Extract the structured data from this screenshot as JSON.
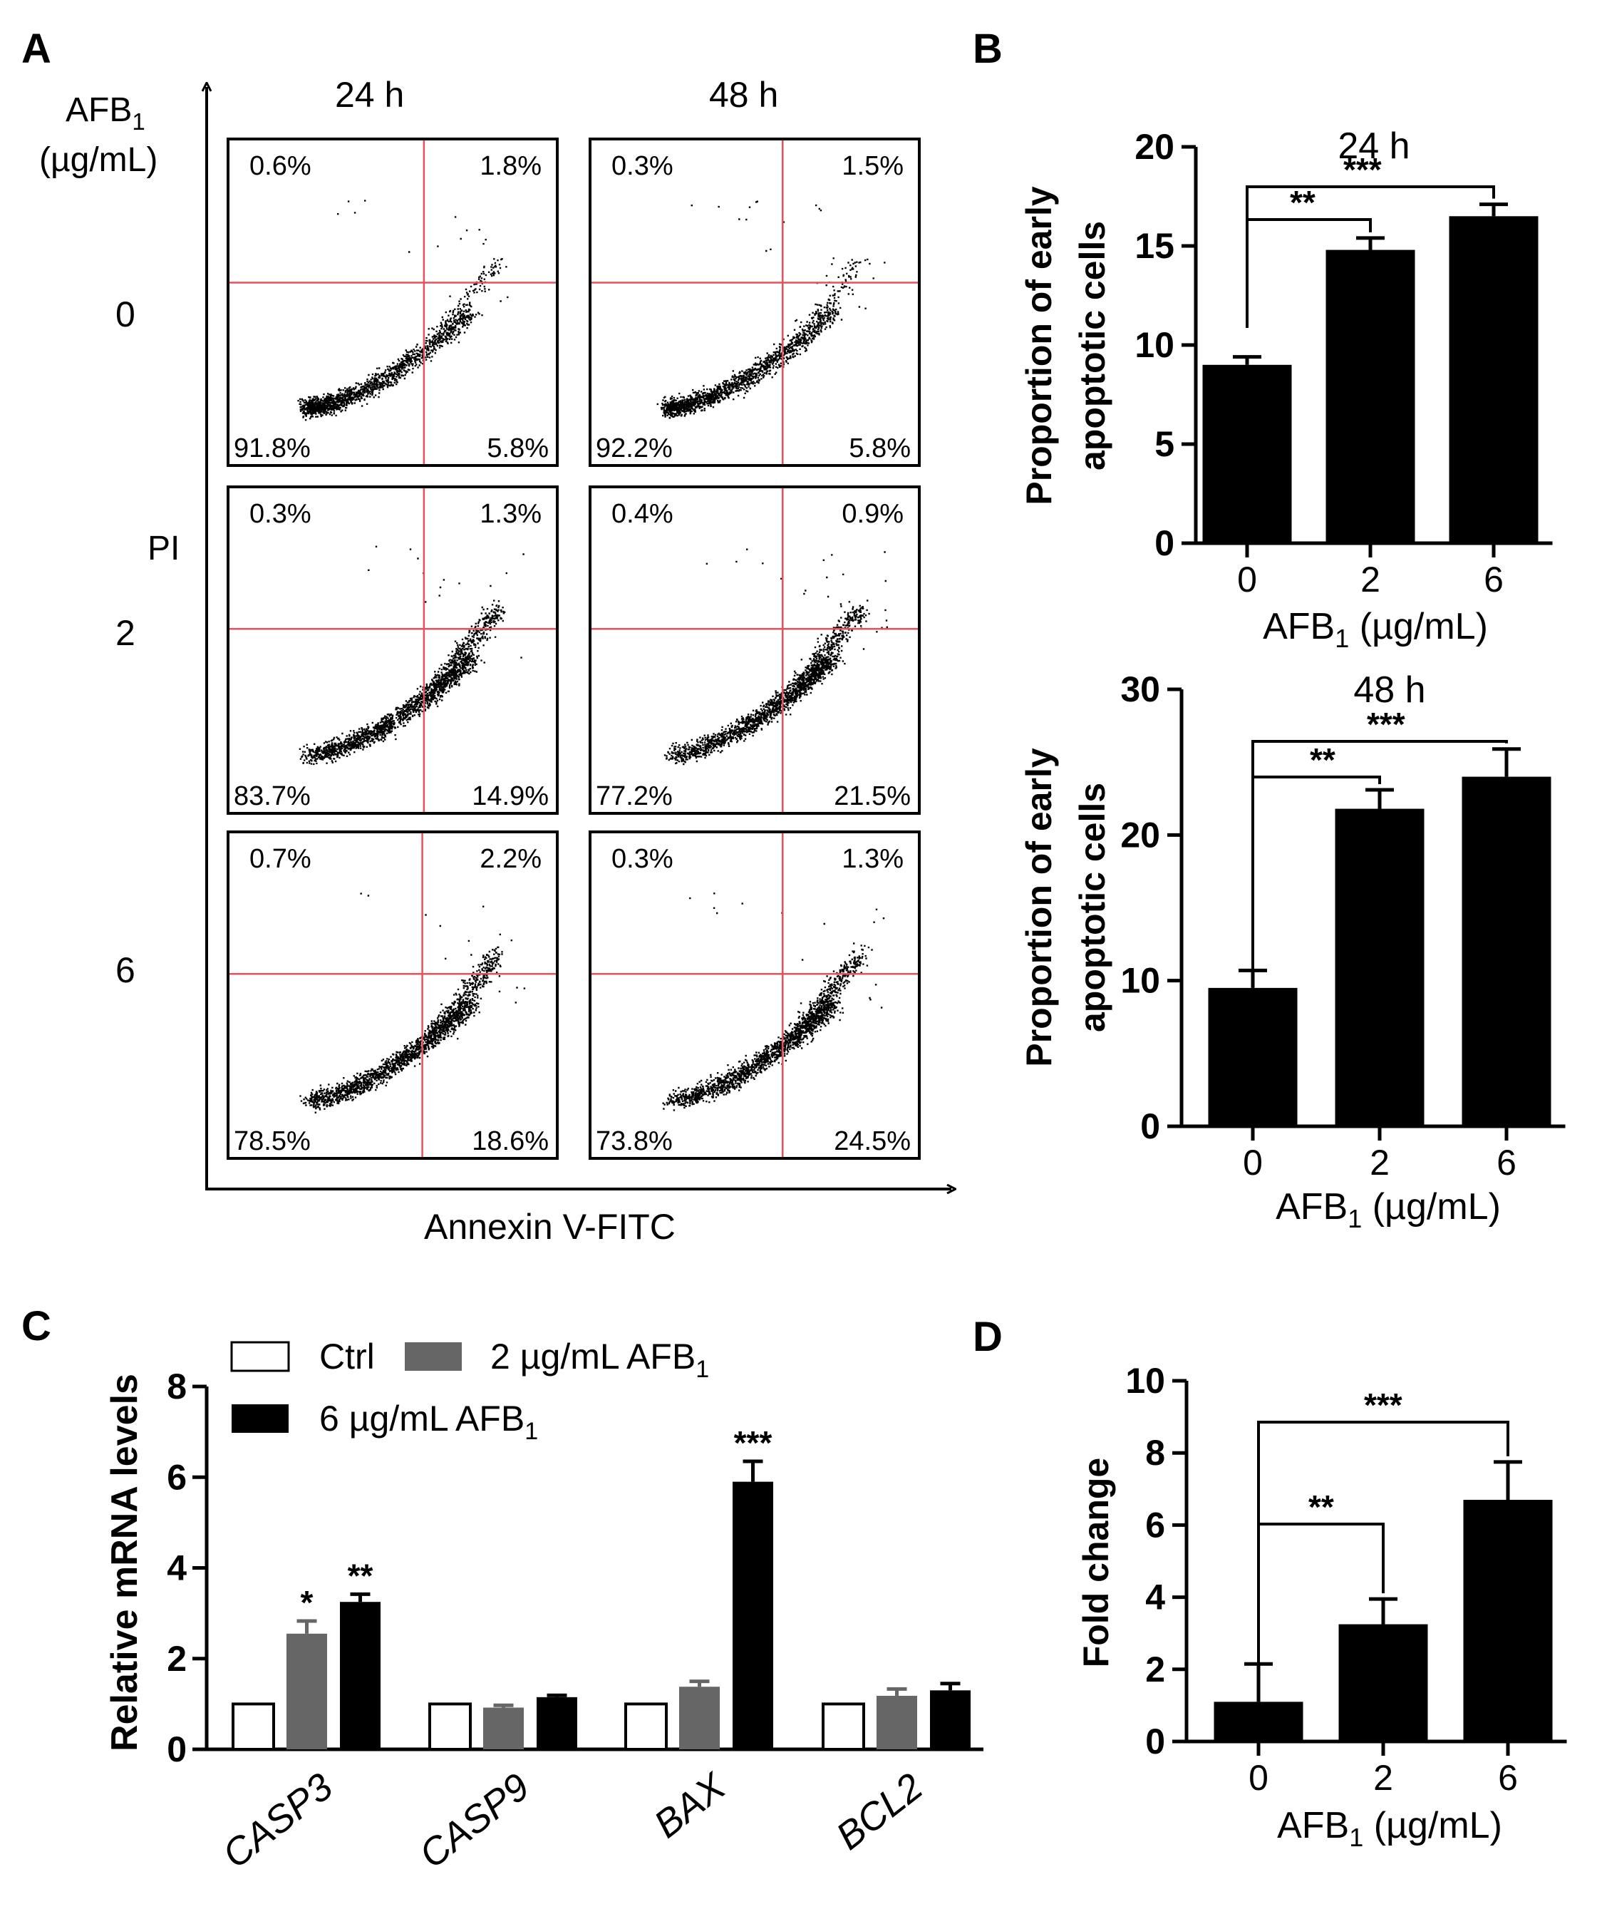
{
  "panel_letters": {
    "a": "A",
    "b": "B",
    "c": "C",
    "d": "D"
  },
  "flow": {
    "afb_label": "AFB",
    "afb_sub": "1",
    "unit_label": "(µg/mL)",
    "y_axis": "PI",
    "x_axis": "Annexin V-FITC",
    "col_times": [
      "24 h",
      "48 h"
    ],
    "row_doses": [
      "0",
      "2",
      "6"
    ],
    "colors": {
      "gate": "#e8505b",
      "dots": "#000000"
    },
    "plots": [
      {
        "tl": "0.6%",
        "tr": "1.8%",
        "bl": "91.8%",
        "br": "5.8%",
        "gx": 0.595,
        "gy": 0.44,
        "shape": "ctrl"
      },
      {
        "tl": "0.3%",
        "tr": "1.5%",
        "bl": "92.2%",
        "br": "5.8%",
        "gx": 0.585,
        "gy": 0.44,
        "shape": "ctrl"
      },
      {
        "tl": "0.3%",
        "tr": "1.3%",
        "bl": "83.7%",
        "br": "14.9%",
        "gx": 0.595,
        "gy": 0.435,
        "shape": "mid"
      },
      {
        "tl": "0.4%",
        "tr": "0.9%",
        "bl": "77.2%",
        "br": "21.5%",
        "gx": 0.585,
        "gy": 0.435,
        "shape": "high"
      },
      {
        "tl": "0.7%",
        "tr": "2.2%",
        "bl": "78.5%",
        "br": "18.6%",
        "gx": 0.59,
        "gy": 0.435,
        "shape": "mid"
      },
      {
        "tl": "0.3%",
        "tr": "1.3%",
        "bl": "73.8%",
        "br": "24.5%",
        "gx": 0.585,
        "gy": 0.435,
        "shape": "high"
      }
    ]
  },
  "chart_data": [
    {
      "id": "B-24h",
      "type": "bar",
      "title": "24 h",
      "categories": [
        "0",
        "2",
        "6"
      ],
      "values": [
        9.0,
        14.8,
        16.5
      ],
      "errors": [
        0.4,
        0.6,
        0.6
      ],
      "ylim": [
        0,
        20
      ],
      "yticks": [
        "0",
        "5",
        "10",
        "15",
        "20"
      ],
      "ylabel_line1": "Proportion of early",
      "ylabel_line2": "apoptotic cells",
      "xlabel": "AFB",
      "xlabel_sub": "1",
      "xlabel_unit": " (µg/mL)",
      "significance": [
        {
          "from": 0,
          "to": 1,
          "label": "**"
        },
        {
          "from": 0,
          "to": 2,
          "label": "***"
        }
      ]
    },
    {
      "id": "B-48h",
      "type": "bar",
      "title": "48 h",
      "categories": [
        "0",
        "2",
        "6"
      ],
      "values": [
        9.5,
        21.8,
        24.0
      ],
      "errors": [
        1.2,
        1.3,
        1.9
      ],
      "ylim": [
        0,
        30
      ],
      "yticks": [
        "0",
        "10",
        "20",
        "30"
      ],
      "ylabel_line1": "Proportion of early",
      "ylabel_line2": "apoptotic cells",
      "xlabel": "AFB",
      "xlabel_sub": "1",
      "xlabel_unit": " (µg/mL)",
      "significance": [
        {
          "from": 0,
          "to": 1,
          "label": "**"
        },
        {
          "from": 0,
          "to": 2,
          "label": "***"
        }
      ]
    },
    {
      "id": "C",
      "type": "bar",
      "categories": [
        "CASP3",
        "CASP9",
        "BAX",
        "BCL2"
      ],
      "ylim": [
        0,
        8
      ],
      "yticks": [
        "0",
        "2",
        "4",
        "6",
        "8"
      ],
      "ylabel": "Relative mRNA levels",
      "legend": {
        "ctrl": "Ctrl",
        "mid_prefix": "2 µg/mL AFB",
        "high_prefix": "6 µg/mL AFB",
        "sub": "1"
      },
      "series": [
        {
          "name": "Ctrl",
          "color": "#ffffff",
          "values": [
            1.0,
            1.0,
            1.0,
            1.0
          ],
          "errors": [
            0,
            0,
            0,
            0
          ],
          "labels": [
            "",
            "",
            "",
            ""
          ]
        },
        {
          "name": "2 µg/mL AFB1",
          "color": "#666666",
          "values": [
            2.55,
            0.92,
            1.38,
            1.18
          ],
          "errors": [
            0.28,
            0.05,
            0.12,
            0.15
          ],
          "labels": [
            "*",
            "",
            "",
            ""
          ]
        },
        {
          "name": "6 µg/mL AFB1",
          "color": "#000000",
          "values": [
            3.25,
            1.15,
            5.9,
            1.3
          ],
          "errors": [
            0.17,
            0.04,
            0.45,
            0.15
          ],
          "labels": [
            "**",
            "",
            "***",
            ""
          ]
        }
      ]
    },
    {
      "id": "D",
      "type": "bar",
      "categories": [
        "0",
        "2",
        "6"
      ],
      "values": [
        1.1,
        3.25,
        6.7
      ],
      "errors": [
        1.05,
        0.7,
        1.05
      ],
      "ylim": [
        0,
        10
      ],
      "yticks": [
        "0",
        "2",
        "4",
        "6",
        "8",
        "10"
      ],
      "ylabel": "Fold change",
      "xlabel": "AFB",
      "xlabel_sub": "1",
      "xlabel_unit": " (µg/mL)",
      "significance": [
        {
          "from": 0,
          "to": 1,
          "label": "**"
        },
        {
          "from": 0,
          "to": 2,
          "label": "***"
        }
      ]
    }
  ]
}
